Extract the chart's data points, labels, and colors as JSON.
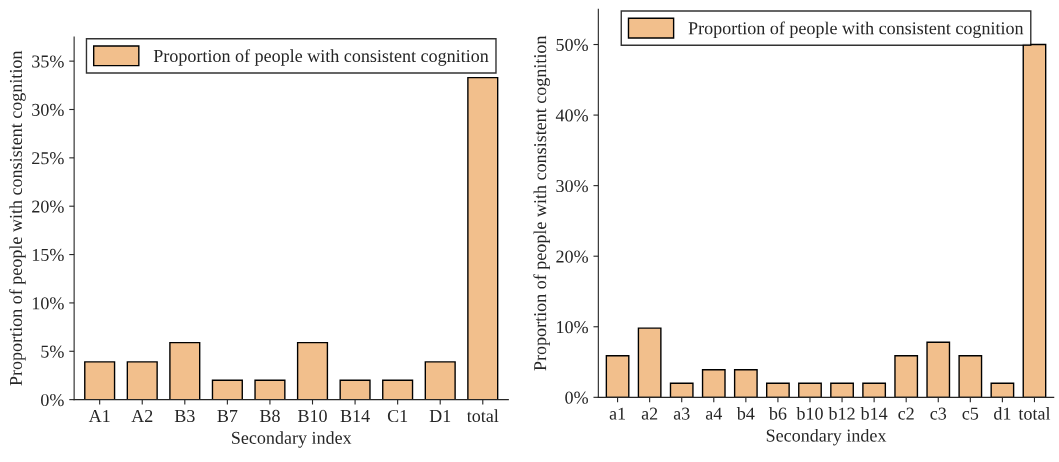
{
  "chart_data": [
    {
      "type": "bar",
      "xlabel": "Secondary index",
      "ylabel": "Proportion of people with consistent cognition",
      "categories": [
        "A1",
        "A2",
        "B3",
        "B7",
        "B8",
        "B10",
        "B14",
        "C1",
        "D1",
        "total"
      ],
      "series": [
        {
          "name": "Proportion of people with consistent cognition",
          "color": "#f2bf8c",
          "values": [
            3.9,
            3.9,
            5.9,
            2,
            2,
            5.9,
            2,
            2,
            3.9,
            33.3
          ]
        }
      ],
      "ylim": [
        0,
        37.5
      ],
      "yticks": [
        {
          "value": 0,
          "label": "0%"
        },
        {
          "value": 5,
          "label": "5%"
        },
        {
          "value": 10,
          "label": "10%"
        },
        {
          "value": 15,
          "label": "15%"
        },
        {
          "value": 20,
          "label": "20%"
        },
        {
          "value": 25,
          "label": "25%"
        },
        {
          "value": 30,
          "label": "30%"
        },
        {
          "value": 35,
          "label": "35%"
        }
      ],
      "legend": "top",
      "grid": false
    },
    {
      "type": "bar",
      "xlabel": "Secondary index",
      "ylabel": "Proportion of people with consistent cognition",
      "categories": [
        "a1",
        "a2",
        "a3",
        "a4",
        "b4",
        "b6",
        "b10",
        "b12",
        "b14",
        "c2",
        "c3",
        "c5",
        "d1",
        "total"
      ],
      "series": [
        {
          "name": "Proportion of people with consistent cognition",
          "color": "#f2bf8c",
          "values": [
            5.9,
            9.8,
            2,
            3.9,
            3.9,
            2,
            2,
            2,
            2,
            5.9,
            7.8,
            5.9,
            2,
            50
          ]
        }
      ],
      "ylim": [
        0,
        55
      ],
      "yticks": [
        {
          "value": 0,
          "label": "0%"
        },
        {
          "value": 10,
          "label": "10%"
        },
        {
          "value": 20,
          "label": "20%"
        },
        {
          "value": 30,
          "label": "30%"
        },
        {
          "value": 40,
          "label": "40%"
        },
        {
          "value": 50,
          "label": "50%"
        }
      ],
      "legend": "top",
      "grid": false
    }
  ]
}
